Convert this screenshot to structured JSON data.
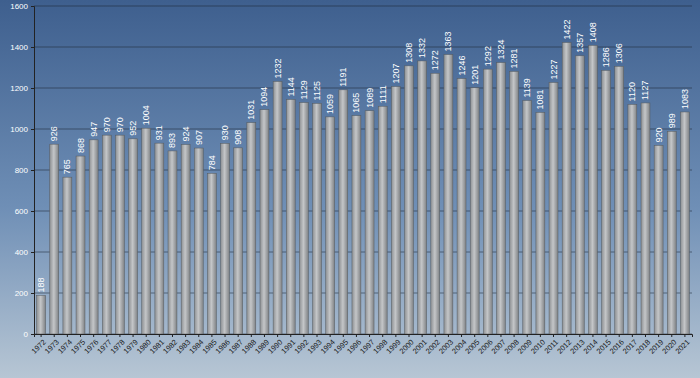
{
  "chart_data": {
    "type": "bar",
    "categories": [
      "1972",
      "1973",
      "1974",
      "1975",
      "1976",
      "1977",
      "1978",
      "1979",
      "1980",
      "1981",
      "1982",
      "1983",
      "1984",
      "1985",
      "1986",
      "1987",
      "1988",
      "1989",
      "1990",
      "1991",
      "1992",
      "1993",
      "1994",
      "1995",
      "1996",
      "1997",
      "1998",
      "1999",
      "2000",
      "2001",
      "2002",
      "2003",
      "2004",
      "2005",
      "2006",
      "2007",
      "2008",
      "2009",
      "2010",
      "2011",
      "2012",
      "2013",
      "2014",
      "2015",
      "2016",
      "2017",
      "2018",
      "2019",
      "2020",
      "2021"
    ],
    "values": [
      188,
      926,
      765,
      868,
      947,
      970,
      970,
      952,
      1004,
      931,
      893,
      924,
      907,
      784,
      930,
      908,
      1031,
      1094,
      1232,
      1144,
      1129,
      1125,
      1059,
      1191,
      1065,
      1089,
      1111,
      1207,
      1308,
      1332,
      1272,
      1363,
      1246,
      1201,
      1292,
      1324,
      1281,
      1139,
      1081,
      1227,
      1422,
      1357,
      1408,
      1286,
      1306,
      1120,
      1127,
      920,
      989,
      1083
    ],
    "color": "#c4c6c8",
    "ylim": [
      0,
      1600
    ],
    "yticks": [
      0,
      200,
      400,
      600,
      800,
      1000,
      1200,
      1400,
      1600
    ],
    "grid": true,
    "data_labels": true
  }
}
